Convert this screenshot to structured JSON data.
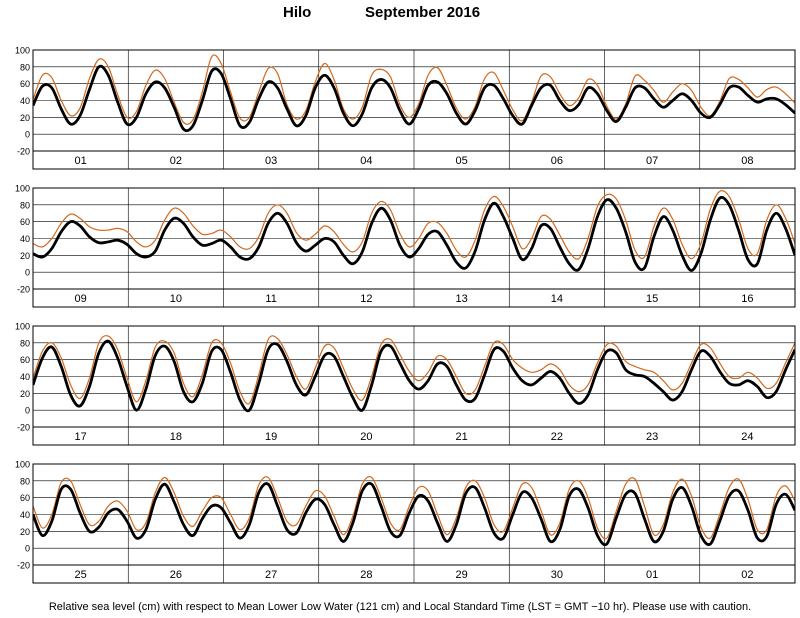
{
  "title": {
    "station": "Hilo",
    "month": "September   2016"
  },
  "footnote": "Relative sea level (cm) with respect to Mean Lower Low Water (121 cm) and Local Standard Time (LST = GMT −10 hr). Please use with caution.",
  "colors": {
    "observed": "#000000",
    "predicted": "#d2691e",
    "grid": "#000000"
  },
  "chart_data": [
    {
      "type": "line",
      "panel": 1,
      "ylim": [
        -20,
        100
      ],
      "yticks": [
        -20,
        0,
        20,
        40,
        60,
        80,
        100
      ],
      "day_labels": [
        "01",
        "02",
        "03",
        "04",
        "05",
        "06",
        "07",
        "08"
      ],
      "series": [
        {
          "values": [
            34,
            57,
            55,
            30,
            12,
            22,
            53,
            80,
            70,
            38,
            12,
            20,
            48,
            62,
            55,
            32,
            6,
            10,
            40,
            75,
            72,
            42,
            10,
            14,
            42,
            62,
            55,
            30,
            10,
            22,
            55,
            70,
            55,
            25,
            10,
            24,
            55,
            65,
            55,
            28,
            12,
            30,
            58,
            62,
            48,
            25,
            12,
            28,
            55,
            58,
            42,
            22,
            12,
            34,
            55,
            58,
            40,
            28,
            35,
            55,
            48,
            28,
            15,
            32,
            55,
            55,
            42,
            32,
            40,
            48,
            40,
            25,
            20,
            35,
            55,
            56,
            46,
            38,
            42,
            42,
            35,
            25
          ]
        },
        {
          "values": [
            41,
            70,
            67,
            40,
            22,
            31,
            66,
            89,
            80,
            47,
            20,
            27,
            58,
            76,
            66,
            38,
            14,
            17,
            50,
            92,
            84,
            50,
            19,
            20,
            50,
            78,
            72,
            35,
            18,
            28,
            62,
            84,
            65,
            30,
            18,
            32,
            70,
            77,
            68,
            35,
            20,
            36,
            70,
            79,
            58,
            31,
            18,
            33,
            66,
            73,
            52,
            29,
            16,
            38,
            69,
            68,
            48,
            34,
            43,
            65,
            58,
            33,
            18,
            36,
            69,
            64,
            52,
            38,
            50,
            60,
            52,
            32,
            22,
            39,
            66,
            65,
            55,
            44,
            53,
            56,
            48,
            37
          ]
        }
      ]
    },
    {
      "type": "line",
      "panel": 2,
      "ylim": [
        -20,
        100
      ],
      "yticks": [
        -20,
        0,
        20,
        40,
        60,
        80,
        100
      ],
      "day_labels": [
        "09",
        "10",
        "11",
        "12",
        "13",
        "14",
        "15",
        "16"
      ],
      "series": [
        {
          "values": [
            22,
            18,
            28,
            48,
            60,
            55,
            42,
            35,
            36,
            38,
            33,
            22,
            18,
            25,
            50,
            64,
            58,
            42,
            32,
            34,
            38,
            30,
            18,
            16,
            30,
            58,
            70,
            58,
            35,
            25,
            32,
            40,
            36,
            20,
            10,
            24,
            58,
            76,
            62,
            32,
            18,
            28,
            45,
            48,
            32,
            12,
            5,
            25,
            62,
            82,
            66,
            40,
            15,
            28,
            55,
            52,
            30,
            10,
            3,
            28,
            66,
            86,
            76,
            48,
            12,
            5,
            42,
            66,
            50,
            20,
            2,
            22,
            62,
            88,
            80,
            50,
            15,
            10,
            50,
            70,
            52,
            20
          ]
        },
        {
          "values": [
            34,
            30,
            40,
            58,
            69,
            64,
            54,
            50,
            50,
            52,
            48,
            36,
            30,
            38,
            62,
            76,
            70,
            55,
            45,
            46,
            50,
            42,
            30,
            28,
            42,
            70,
            80,
            70,
            47,
            38,
            45,
            55,
            48,
            33,
            24,
            36,
            70,
            84,
            74,
            46,
            30,
            40,
            58,
            59,
            46,
            26,
            18,
            38,
            74,
            90,
            78,
            54,
            28,
            40,
            66,
            63,
            44,
            24,
            16,
            40,
            78,
            92,
            87,
            62,
            26,
            18,
            54,
            76,
            63,
            33,
            16,
            34,
            75,
            96,
            90,
            63,
            28,
            22,
            62,
            80,
            64,
            34
          ]
        }
      ]
    },
    {
      "type": "line",
      "panel": 3,
      "ylim": [
        -20,
        100
      ],
      "yticks": [
        -20,
        0,
        20,
        40,
        60,
        80,
        100
      ],
      "day_labels": [
        "17",
        "18",
        "19",
        "20",
        "21",
        "22",
        "23",
        "24"
      ],
      "series": [
        {
          "values": [
            30,
            62,
            75,
            52,
            18,
            5,
            28,
            68,
            82,
            62,
            28,
            0,
            25,
            65,
            76,
            58,
            22,
            10,
            32,
            70,
            72,
            45,
            12,
            0,
            32,
            72,
            78,
            58,
            30,
            18,
            40,
            65,
            64,
            40,
            15,
            0,
            30,
            70,
            76,
            56,
            35,
            25,
            35,
            55,
            52,
            30,
            12,
            14,
            42,
            72,
            70,
            50,
            35,
            30,
            38,
            46,
            38,
            20,
            8,
            18,
            48,
            70,
            68,
            48,
            42,
            40,
            32,
            22,
            12,
            22,
            48,
            70,
            64,
            46,
            32,
            30,
            35,
            28,
            15,
            22,
            48,
            72
          ]
        },
        {
          "values": [
            38,
            70,
            80,
            62,
            30,
            14,
            38,
            80,
            88,
            72,
            38,
            10,
            35,
            75,
            82,
            68,
            32,
            16,
            42,
            80,
            80,
            56,
            22,
            8,
            42,
            84,
            85,
            66,
            40,
            25,
            50,
            76,
            74,
            50,
            25,
            12,
            40,
            78,
            84,
            66,
            46,
            35,
            45,
            64,
            60,
            40,
            20,
            24,
            52,
            80,
            78,
            60,
            50,
            45,
            48,
            55,
            48,
            30,
            22,
            30,
            56,
            78,
            76,
            58,
            52,
            48,
            45,
            35,
            24,
            32,
            56,
            78,
            74,
            56,
            40,
            38,
            45,
            38,
            26,
            32,
            56,
            80
          ]
        }
      ]
    },
    {
      "type": "line",
      "panel": 4,
      "ylim": [
        -20,
        100
      ],
      "yticks": [
        -20,
        0,
        20,
        40,
        60,
        80,
        100
      ],
      "day_labels": [
        "25",
        "26",
        "27",
        "28",
        "29",
        "30",
        "01",
        "02"
      ],
      "series": [
        {
          "values": [
            40,
            15,
            32,
            70,
            70,
            42,
            20,
            25,
            42,
            46,
            32,
            12,
            22,
            58,
            76,
            55,
            28,
            15,
            35,
            50,
            48,
            30,
            12,
            28,
            66,
            76,
            50,
            22,
            18,
            42,
            58,
            52,
            28,
            8,
            30,
            68,
            76,
            50,
            20,
            15,
            42,
            62,
            56,
            30,
            8,
            28,
            65,
            72,
            48,
            18,
            12,
            40,
            66,
            60,
            35,
            8,
            22,
            62,
            70,
            48,
            15,
            5,
            36,
            64,
            65,
            35,
            8,
            20,
            58,
            72,
            50,
            15,
            5,
            32,
            62,
            68,
            45,
            12,
            14,
            52,
            64,
            45
          ]
        },
        {
          "values": [
            50,
            24,
            40,
            78,
            80,
            52,
            28,
            32,
            50,
            56,
            44,
            22,
            30,
            66,
            84,
            66,
            38,
            26,
            44,
            60,
            60,
            40,
            22,
            36,
            75,
            84,
            60,
            32,
            28,
            50,
            68,
            62,
            38,
            16,
            38,
            76,
            84,
            60,
            30,
            22,
            50,
            72,
            68,
            40,
            16,
            36,
            72,
            80,
            60,
            28,
            20,
            48,
            76,
            72,
            45,
            16,
            30,
            70,
            80,
            60,
            24,
            12,
            44,
            76,
            82,
            50,
            16,
            28,
            66,
            82,
            62,
            25,
            12,
            40,
            72,
            82,
            58,
            22,
            22,
            62,
            74,
            56
          ]
        }
      ]
    }
  ]
}
